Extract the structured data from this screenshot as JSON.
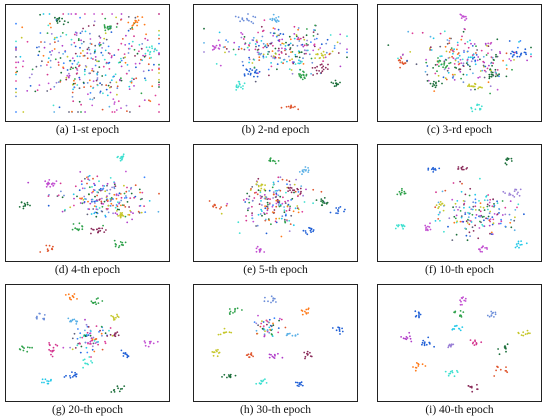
{
  "figure": {
    "palette": [
      "#1f5fd6",
      "#3a86ff",
      "#6c8ed9",
      "#5ab0e6",
      "#c24fd1",
      "#b03cc9",
      "#d4358f",
      "#e0409a",
      "#9a7fd6",
      "#c6c72b",
      "#2ea14a",
      "#1b6e3a",
      "#ff7a1a",
      "#e0572f",
      "#3fe0d0",
      "#20c8e8",
      "#5f5f7a",
      "#8a2b5a"
    ]
  },
  "chart_data": [
    {
      "type": "scatter",
      "title": "(a) 1-st epoch",
      "clusters": [
        {
          "x": 0.5,
          "y": 0.5,
          "sx": 0.28,
          "sy": 0.25,
          "n": 420,
          "mixed": true
        },
        {
          "x": 0.82,
          "y": 0.1,
          "sx": 0.02,
          "sy": 0.03,
          "n": 14,
          "color": 12
        },
        {
          "x": 0.63,
          "y": 0.15,
          "sx": 0.02,
          "sy": 0.02,
          "n": 14,
          "color": 10
        },
        {
          "x": 0.92,
          "y": 0.38,
          "sx": 0.02,
          "sy": 0.02,
          "n": 12,
          "color": 14
        },
        {
          "x": 0.3,
          "y": 0.08,
          "sx": 0.02,
          "sy": 0.02,
          "n": 12,
          "color": 11
        }
      ]
    },
    {
      "type": "scatter",
      "title": "(b) 2-nd epoch",
      "clusters": [
        {
          "x": 0.55,
          "y": 0.35,
          "sx": 0.2,
          "sy": 0.12,
          "n": 260,
          "mixed": true
        },
        {
          "x": 0.1,
          "y": 0.35,
          "sx": 0.02,
          "sy": 0.02,
          "n": 14,
          "color": 4
        },
        {
          "x": 0.3,
          "y": 0.07,
          "sx": 0.03,
          "sy": 0.02,
          "n": 14,
          "color": 2
        },
        {
          "x": 0.5,
          "y": 0.07,
          "sx": 0.02,
          "sy": 0.02,
          "n": 12,
          "color": 3
        },
        {
          "x": 0.35,
          "y": 0.6,
          "sx": 0.03,
          "sy": 0.02,
          "n": 18,
          "color": 0
        },
        {
          "x": 0.25,
          "y": 0.72,
          "sx": 0.02,
          "sy": 0.02,
          "n": 14,
          "color": 14
        },
        {
          "x": 0.6,
          "y": 0.93,
          "sx": 0.02,
          "sy": 0.02,
          "n": 12,
          "color": 13
        },
        {
          "x": 0.68,
          "y": 0.63,
          "sx": 0.03,
          "sy": 0.02,
          "n": 18,
          "color": 10
        },
        {
          "x": 0.8,
          "y": 0.55,
          "sx": 0.03,
          "sy": 0.03,
          "n": 18,
          "color": 17
        },
        {
          "x": 0.8,
          "y": 0.42,
          "sx": 0.02,
          "sy": 0.02,
          "n": 14,
          "color": 9
        },
        {
          "x": 0.92,
          "y": 0.7,
          "sx": 0.02,
          "sy": 0.02,
          "n": 12,
          "color": 11
        }
      ]
    },
    {
      "type": "scatter",
      "title": "(c) 3-rd epoch",
      "clusters": [
        {
          "x": 0.55,
          "y": 0.45,
          "sx": 0.18,
          "sy": 0.12,
          "n": 230,
          "mixed": true
        },
        {
          "x": 0.52,
          "y": 0.05,
          "sx": 0.02,
          "sy": 0.02,
          "n": 12,
          "color": 4
        },
        {
          "x": 0.12,
          "y": 0.5,
          "sx": 0.02,
          "sy": 0.02,
          "n": 14,
          "color": 13
        },
        {
          "x": 0.38,
          "y": 0.5,
          "sx": 0.02,
          "sy": 0.02,
          "n": 14,
          "color": 10
        },
        {
          "x": 0.33,
          "y": 0.7,
          "sx": 0.02,
          "sy": 0.02,
          "n": 12,
          "color": 11
        },
        {
          "x": 0.62,
          "y": 0.93,
          "sx": 0.02,
          "sy": 0.02,
          "n": 12,
          "color": 14
        },
        {
          "x": 0.6,
          "y": 0.73,
          "sx": 0.03,
          "sy": 0.02,
          "n": 14,
          "color": 9
        },
        {
          "x": 0.73,
          "y": 0.62,
          "sx": 0.02,
          "sy": 0.02,
          "n": 14,
          "color": 11
        },
        {
          "x": 0.9,
          "y": 0.4,
          "sx": 0.03,
          "sy": 0.02,
          "n": 16,
          "color": 0
        }
      ]
    },
    {
      "type": "scatter",
      "title": "(d) 4-th epoch",
      "clusters": [
        {
          "x": 0.6,
          "y": 0.45,
          "sx": 0.15,
          "sy": 0.1,
          "n": 210,
          "mixed": true
        },
        {
          "x": 0.72,
          "y": 0.06,
          "sx": 0.02,
          "sy": 0.02,
          "n": 14,
          "color": 14
        },
        {
          "x": 0.25,
          "y": 0.32,
          "sx": 0.03,
          "sy": 0.02,
          "n": 16,
          "color": 4
        },
        {
          "x": 0.08,
          "y": 0.52,
          "sx": 0.02,
          "sy": 0.02,
          "n": 12,
          "color": 11
        },
        {
          "x": 0.44,
          "y": 0.75,
          "sx": 0.02,
          "sy": 0.02,
          "n": 12,
          "color": 10
        },
        {
          "x": 0.58,
          "y": 0.76,
          "sx": 0.03,
          "sy": 0.02,
          "n": 16,
          "color": 17
        },
        {
          "x": 0.73,
          "y": 0.62,
          "sx": 0.02,
          "sy": 0.02,
          "n": 14,
          "color": 9
        },
        {
          "x": 0.72,
          "y": 0.9,
          "sx": 0.02,
          "sy": 0.02,
          "n": 12,
          "color": 10
        },
        {
          "x": 0.25,
          "y": 0.95,
          "sx": 0.02,
          "sy": 0.02,
          "n": 10,
          "color": 13
        }
      ]
    },
    {
      "type": "scatter",
      "title": "(e) 5-th epoch",
      "clusters": [
        {
          "x": 0.5,
          "y": 0.5,
          "sx": 0.12,
          "sy": 0.12,
          "n": 190,
          "mixed": true
        },
        {
          "x": 0.48,
          "y": 0.08,
          "sx": 0.02,
          "sy": 0.02,
          "n": 10,
          "color": 10
        },
        {
          "x": 0.7,
          "y": 0.18,
          "sx": 0.02,
          "sy": 0.02,
          "n": 12,
          "color": 3
        },
        {
          "x": 0.4,
          "y": 0.33,
          "sx": 0.02,
          "sy": 0.02,
          "n": 12,
          "color": 9
        },
        {
          "x": 0.62,
          "y": 0.37,
          "sx": 0.03,
          "sy": 0.02,
          "n": 14,
          "color": 17
        },
        {
          "x": 0.82,
          "y": 0.48,
          "sx": 0.02,
          "sy": 0.02,
          "n": 12,
          "color": 11
        },
        {
          "x": 0.1,
          "y": 0.52,
          "sx": 0.02,
          "sy": 0.02,
          "n": 12,
          "color": 13
        },
        {
          "x": 0.92,
          "y": 0.58,
          "sx": 0.02,
          "sy": 0.02,
          "n": 10,
          "color": 0
        },
        {
          "x": 0.72,
          "y": 0.78,
          "sx": 0.02,
          "sy": 0.02,
          "n": 12,
          "color": 0
        },
        {
          "x": 0.4,
          "y": 0.95,
          "sx": 0.02,
          "sy": 0.02,
          "n": 10,
          "color": 4
        }
      ]
    },
    {
      "type": "scatter",
      "title": "(f) 10-th epoch",
      "clusters": [
        {
          "x": 0.62,
          "y": 0.6,
          "sx": 0.13,
          "sy": 0.12,
          "n": 170,
          "mixed": true
        },
        {
          "x": 0.32,
          "y": 0.17,
          "sx": 0.02,
          "sy": 0.02,
          "n": 10,
          "color": 0
        },
        {
          "x": 0.52,
          "y": 0.17,
          "sx": 0.02,
          "sy": 0.02,
          "n": 10,
          "color": 17
        },
        {
          "x": 0.82,
          "y": 0.08,
          "sx": 0.02,
          "sy": 0.02,
          "n": 10,
          "color": 11
        },
        {
          "x": 0.86,
          "y": 0.4,
          "sx": 0.03,
          "sy": 0.02,
          "n": 14,
          "color": 8
        },
        {
          "x": 0.12,
          "y": 0.4,
          "sx": 0.02,
          "sy": 0.02,
          "n": 10,
          "color": 10
        },
        {
          "x": 0.38,
          "y": 0.53,
          "sx": 0.02,
          "sy": 0.02,
          "n": 10,
          "color": 9
        },
        {
          "x": 0.1,
          "y": 0.72,
          "sx": 0.02,
          "sy": 0.02,
          "n": 12,
          "color": 14
        },
        {
          "x": 0.3,
          "y": 0.76,
          "sx": 0.02,
          "sy": 0.02,
          "n": 10,
          "color": 4
        },
        {
          "x": 0.65,
          "y": 0.95,
          "sx": 0.02,
          "sy": 0.02,
          "n": 12,
          "color": 4
        },
        {
          "x": 0.9,
          "y": 0.9,
          "sx": 0.02,
          "sy": 0.02,
          "n": 10,
          "color": 15
        }
      ]
    },
    {
      "type": "scatter",
      "title": "(g) 20-th epoch",
      "clusters": [
        {
          "x": 0.52,
          "y": 0.45,
          "sx": 0.06,
          "sy": 0.08,
          "n": 80,
          "mixed": true
        },
        {
          "x": 0.38,
          "y": 0.05,
          "sx": 0.02,
          "sy": 0.02,
          "n": 10,
          "color": 12
        },
        {
          "x": 0.55,
          "y": 0.09,
          "sx": 0.02,
          "sy": 0.02,
          "n": 10,
          "color": 10
        },
        {
          "x": 0.18,
          "y": 0.25,
          "sx": 0.02,
          "sy": 0.02,
          "n": 10,
          "color": 2
        },
        {
          "x": 0.4,
          "y": 0.28,
          "sx": 0.02,
          "sy": 0.02,
          "n": 10,
          "color": 3
        },
        {
          "x": 0.68,
          "y": 0.25,
          "sx": 0.02,
          "sy": 0.02,
          "n": 10,
          "color": 9
        },
        {
          "x": 0.68,
          "y": 0.42,
          "sx": 0.02,
          "sy": 0.02,
          "n": 10,
          "color": 17
        },
        {
          "x": 0.92,
          "y": 0.5,
          "sx": 0.02,
          "sy": 0.02,
          "n": 10,
          "color": 4
        },
        {
          "x": 0.08,
          "y": 0.55,
          "sx": 0.02,
          "sy": 0.02,
          "n": 10,
          "color": 10
        },
        {
          "x": 0.27,
          "y": 0.55,
          "sx": 0.02,
          "sy": 0.04,
          "n": 14,
          "color": 6
        },
        {
          "x": 0.75,
          "y": 0.62,
          "sx": 0.02,
          "sy": 0.02,
          "n": 10,
          "color": 0
        },
        {
          "x": 0.5,
          "y": 0.7,
          "sx": 0.02,
          "sy": 0.02,
          "n": 10,
          "color": 14
        },
        {
          "x": 0.4,
          "y": 0.82,
          "sx": 0.03,
          "sy": 0.02,
          "n": 12,
          "color": 0
        },
        {
          "x": 0.22,
          "y": 0.86,
          "sx": 0.02,
          "sy": 0.02,
          "n": 10,
          "color": 15
        },
        {
          "x": 0.7,
          "y": 0.95,
          "sx": 0.02,
          "sy": 0.02,
          "n": 10,
          "color": 11
        }
      ]
    },
    {
      "type": "scatter",
      "title": "(h) 30-th epoch",
      "clusters": [
        {
          "x": 0.45,
          "y": 0.35,
          "sx": 0.05,
          "sy": 0.05,
          "n": 50,
          "mixed": true
        },
        {
          "x": 0.48,
          "y": 0.08,
          "sx": 0.02,
          "sy": 0.02,
          "n": 10,
          "color": 2
        },
        {
          "x": 0.22,
          "y": 0.2,
          "sx": 0.02,
          "sy": 0.02,
          "n": 10,
          "color": 10
        },
        {
          "x": 0.7,
          "y": 0.2,
          "sx": 0.02,
          "sy": 0.02,
          "n": 10,
          "color": 12
        },
        {
          "x": 0.15,
          "y": 0.4,
          "sx": 0.02,
          "sy": 0.02,
          "n": 10,
          "color": 9
        },
        {
          "x": 0.6,
          "y": 0.42,
          "sx": 0.02,
          "sy": 0.02,
          "n": 10,
          "color": 3
        },
        {
          "x": 0.92,
          "y": 0.38,
          "sx": 0.02,
          "sy": 0.02,
          "n": 10,
          "color": 0
        },
        {
          "x": 0.1,
          "y": 0.6,
          "sx": 0.02,
          "sy": 0.02,
          "n": 10,
          "color": 9
        },
        {
          "x": 0.32,
          "y": 0.62,
          "sx": 0.02,
          "sy": 0.02,
          "n": 10,
          "color": 13
        },
        {
          "x": 0.48,
          "y": 0.62,
          "sx": 0.02,
          "sy": 0.02,
          "n": 10,
          "color": 5
        },
        {
          "x": 0.72,
          "y": 0.62,
          "sx": 0.02,
          "sy": 0.02,
          "n": 10,
          "color": 17
        },
        {
          "x": 0.18,
          "y": 0.82,
          "sx": 0.02,
          "sy": 0.02,
          "n": 10,
          "color": 11
        },
        {
          "x": 0.4,
          "y": 0.88,
          "sx": 0.02,
          "sy": 0.02,
          "n": 10,
          "color": 14
        },
        {
          "x": 0.65,
          "y": 0.9,
          "sx": 0.02,
          "sy": 0.02,
          "n": 10,
          "color": 0
        }
      ]
    },
    {
      "type": "scatter",
      "title": "(i) 40-th epoch",
      "clusters": [
        {
          "x": 0.52,
          "y": 0.08,
          "sx": 0.02,
          "sy": 0.02,
          "n": 10,
          "color": 4
        },
        {
          "x": 0.22,
          "y": 0.22,
          "sx": 0.02,
          "sy": 0.02,
          "n": 10,
          "color": 0
        },
        {
          "x": 0.5,
          "y": 0.22,
          "sx": 0.02,
          "sy": 0.02,
          "n": 10,
          "color": 10
        },
        {
          "x": 0.72,
          "y": 0.22,
          "sx": 0.02,
          "sy": 0.02,
          "n": 10,
          "color": 2
        },
        {
          "x": 0.48,
          "y": 0.35,
          "sx": 0.02,
          "sy": 0.02,
          "n": 10,
          "color": 15
        },
        {
          "x": 0.93,
          "y": 0.4,
          "sx": 0.02,
          "sy": 0.02,
          "n": 10,
          "color": 9
        },
        {
          "x": 0.15,
          "y": 0.45,
          "sx": 0.02,
          "sy": 0.02,
          "n": 10,
          "color": 5
        },
        {
          "x": 0.3,
          "y": 0.5,
          "sx": 0.03,
          "sy": 0.02,
          "n": 12,
          "color": 0
        },
        {
          "x": 0.45,
          "y": 0.52,
          "sx": 0.02,
          "sy": 0.02,
          "n": 10,
          "color": 8
        },
        {
          "x": 0.62,
          "y": 0.5,
          "sx": 0.02,
          "sy": 0.02,
          "n": 10,
          "color": 6
        },
        {
          "x": 0.8,
          "y": 0.55,
          "sx": 0.02,
          "sy": 0.02,
          "n": 10,
          "color": 11
        },
        {
          "x": 0.22,
          "y": 0.72,
          "sx": 0.02,
          "sy": 0.02,
          "n": 10,
          "color": 12
        },
        {
          "x": 0.45,
          "y": 0.78,
          "sx": 0.02,
          "sy": 0.02,
          "n": 10,
          "color": 14
        },
        {
          "x": 0.78,
          "y": 0.76,
          "sx": 0.02,
          "sy": 0.02,
          "n": 10,
          "color": 13
        },
        {
          "x": 0.58,
          "y": 0.93,
          "sx": 0.02,
          "sy": 0.02,
          "n": 10,
          "color": 17
        }
      ]
    }
  ]
}
